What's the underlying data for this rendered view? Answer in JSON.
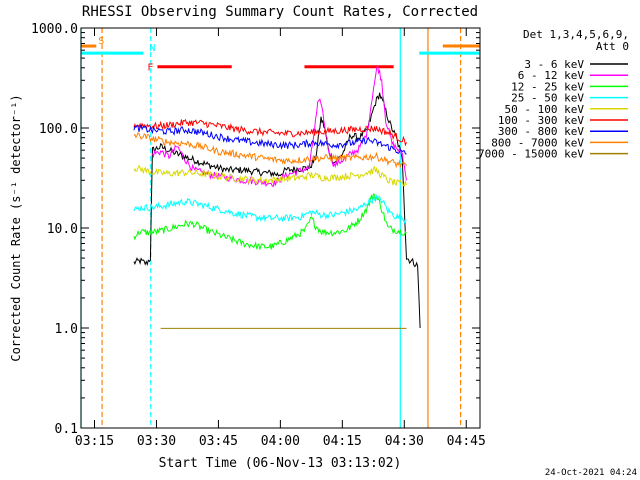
{
  "chart_data": {
    "type": "line",
    "title": "RHESSI Observing Summary Count Rates, Corrected",
    "xlabel": "Start Time (06-Nov-13 03:13:02)",
    "ylabel": "Corrected Count Rate (s⁻¹ detector⁻¹)",
    "yscale": "log",
    "ylim": [
      0.1,
      1000
    ],
    "xlim_minutes_after_0313": [
      -1.3,
      95.3
    ],
    "x_ticks": [
      {
        "label": "03:15",
        "min": 1.97
      },
      {
        "label": "03:30",
        "min": 16.97
      },
      {
        "label": "03:45",
        "min": 31.97
      },
      {
        "label": "04:00",
        "min": 46.97
      },
      {
        "label": "04:15",
        "min": 61.97
      },
      {
        "label": "04:30",
        "min": 76.97
      },
      {
        "label": "04:45",
        "min": 91.97
      }
    ],
    "y_ticks": [
      {
        "label": "0.1",
        "value": 0.1
      },
      {
        "label": "1.0",
        "value": 1
      },
      {
        "label": "10.0",
        "value": 10
      },
      {
        "label": "100.0",
        "value": 100
      },
      {
        "label": "1000.0",
        "value": 1000
      }
    ],
    "legend_header": [
      "Det 1,3,4,5,6,9,",
      "Att 0"
    ],
    "legend_position": "right",
    "series": [
      {
        "name": "3 - 6 keV",
        "color": "#000000",
        "points": [
          [
            11.5,
            4.5
          ],
          [
            13,
            4.7
          ],
          [
            14.5,
            4.4
          ],
          [
            15.5,
            5
          ],
          [
            16,
            60
          ],
          [
            18,
            65
          ],
          [
            22,
            55
          ],
          [
            26,
            48
          ],
          [
            30,
            42
          ],
          [
            34,
            38
          ],
          [
            38,
            38
          ],
          [
            42,
            36
          ],
          [
            45.5,
            35
          ],
          [
            46.5,
            34
          ],
          [
            48.5,
            38
          ],
          [
            54,
            40
          ],
          [
            55.5,
            50
          ],
          [
            56.8,
            125
          ],
          [
            57.7,
            100
          ],
          [
            58.6,
            60
          ],
          [
            60,
            45
          ],
          [
            62,
            55
          ],
          [
            64,
            85
          ],
          [
            66,
            80
          ],
          [
            68,
            95
          ],
          [
            70,
            180
          ],
          [
            71,
            220
          ],
          [
            72,
            170
          ],
          [
            73.5,
            110
          ],
          [
            75,
            80
          ],
          [
            76.5,
            50
          ],
          [
            77.5,
            5
          ],
          [
            79,
            4.6
          ],
          [
            80.2,
            4.2
          ],
          [
            80.8,
            1
          ]
        ]
      },
      {
        "name": "6 - 12 keV",
        "color": "#ff00ff",
        "points": [
          [
            16,
            55
          ],
          [
            18,
            58
          ],
          [
            20,
            52
          ],
          [
            22,
            65
          ],
          [
            24,
            48
          ],
          [
            26,
            38
          ],
          [
            30,
            34
          ],
          [
            34,
            32
          ],
          [
            38,
            30
          ],
          [
            42,
            29
          ],
          [
            45.5,
            28
          ],
          [
            48.5,
            34
          ],
          [
            54,
            40
          ],
          [
            55.2,
            95
          ],
          [
            56,
            170
          ],
          [
            56.8,
            185
          ],
          [
            57.5,
            120
          ],
          [
            58.5,
            65
          ],
          [
            60,
            42
          ],
          [
            62,
            48
          ],
          [
            64,
            55
          ],
          [
            66,
            62
          ],
          [
            68,
            90
          ],
          [
            69.5,
            250
          ],
          [
            70.5,
            420
          ],
          [
            71.5,
            300
          ],
          [
            72.5,
            120
          ],
          [
            74,
            70
          ],
          [
            76.5,
            55
          ],
          [
            77.5,
            30
          ]
        ]
      },
      {
        "name": "12 - 25 keV",
        "color": "#00ff00",
        "points": [
          [
            11.5,
            8.2
          ],
          [
            13,
            9.2
          ],
          [
            15,
            9
          ],
          [
            16,
            9
          ],
          [
            20,
            9.8
          ],
          [
            24,
            11
          ],
          [
            26,
            11
          ],
          [
            30,
            9.2
          ],
          [
            34,
            8
          ],
          [
            38,
            7
          ],
          [
            42,
            6.5
          ],
          [
            45,
            6.5
          ],
          [
            48.5,
            7.5
          ],
          [
            51,
            8.5
          ],
          [
            53,
            9.5
          ],
          [
            54.5,
            12.5
          ],
          [
            55.5,
            10.5
          ],
          [
            57,
            9.2
          ],
          [
            60,
            9
          ],
          [
            63,
            9.5
          ],
          [
            66,
            12
          ],
          [
            68,
            16
          ],
          [
            69.5,
            22
          ],
          [
            71,
            18
          ],
          [
            73,
            10
          ],
          [
            75,
            9.5
          ],
          [
            77.5,
            9
          ]
        ]
      },
      {
        "name": "25 - 50 keV",
        "color": "#00ffff",
        "points": [
          [
            11.5,
            15
          ],
          [
            13,
            16
          ],
          [
            16,
            16
          ],
          [
            20,
            17
          ],
          [
            24,
            18.5
          ],
          [
            28,
            17
          ],
          [
            32,
            15.5
          ],
          [
            36,
            14
          ],
          [
            40,
            13
          ],
          [
            44,
            12.5
          ],
          [
            48.5,
            12.5
          ],
          [
            52,
            13
          ],
          [
            54.5,
            14.5
          ],
          [
            57,
            13.5
          ],
          [
            60,
            13.5
          ],
          [
            63,
            14.5
          ],
          [
            66,
            15.5
          ],
          [
            68,
            18
          ],
          [
            70,
            20
          ],
          [
            71.5,
            19
          ],
          [
            73,
            15
          ],
          [
            75,
            13
          ],
          [
            77.5,
            12
          ]
        ]
      },
      {
        "name": "50 - 100 keV",
        "color": "#d8d800",
        "points": [
          [
            11.5,
            40
          ],
          [
            14,
            38
          ],
          [
            16,
            36
          ],
          [
            20,
            35
          ],
          [
            24,
            36
          ],
          [
            28,
            35
          ],
          [
            32,
            33
          ],
          [
            36,
            31.5
          ],
          [
            40,
            30.5
          ],
          [
            44,
            30
          ],
          [
            48.5,
            31
          ],
          [
            52,
            32
          ],
          [
            54.5,
            34
          ],
          [
            57,
            32
          ],
          [
            60,
            32
          ],
          [
            63,
            33
          ],
          [
            66,
            34
          ],
          [
            68,
            36
          ],
          [
            70,
            38
          ],
          [
            73,
            30
          ],
          [
            75,
            28
          ],
          [
            77.5,
            27
          ]
        ]
      },
      {
        "name": "100 - 300 keV",
        "color": "#ff0000",
        "points": [
          [
            11.5,
            108
          ],
          [
            14,
            106
          ],
          [
            17,
            104
          ],
          [
            20,
            107
          ],
          [
            24,
            114
          ],
          [
            28,
            112
          ],
          [
            32,
            105
          ],
          [
            36,
            98
          ],
          [
            40,
            93
          ],
          [
            44,
            90
          ],
          [
            48.5,
            88
          ],
          [
            52,
            89
          ],
          [
            55,
            91
          ],
          [
            58,
            92
          ],
          [
            61,
            94
          ],
          [
            64,
            96
          ],
          [
            67,
            98
          ],
          [
            70,
            99
          ],
          [
            73,
            90
          ],
          [
            75,
            82
          ],
          [
            77.5,
            72
          ]
        ]
      },
      {
        "name": "300 - 800 keV",
        "color": "#0000ff",
        "points": [
          [
            11.5,
            100
          ],
          [
            14,
            98
          ],
          [
            16,
            95
          ],
          [
            20,
            92
          ],
          [
            24,
            96
          ],
          [
            28,
            90
          ],
          [
            32,
            82
          ],
          [
            36,
            76
          ],
          [
            40,
            72
          ],
          [
            44,
            69
          ],
          [
            48.5,
            67
          ],
          [
            52,
            68
          ],
          [
            55,
            72
          ],
          [
            57,
            70
          ],
          [
            60,
            68
          ],
          [
            63,
            70
          ],
          [
            66,
            72
          ],
          [
            68,
            76
          ],
          [
            70,
            72
          ],
          [
            73,
            65
          ],
          [
            75,
            60
          ],
          [
            77.5,
            55
          ]
        ]
      },
      {
        "name": "800 - 7000 keV",
        "color": "#ff8000",
        "points": [
          [
            11.5,
            85
          ],
          [
            14,
            82
          ],
          [
            16,
            78
          ],
          [
            20,
            72
          ],
          [
            24,
            70
          ],
          [
            28,
            65
          ],
          [
            32,
            58
          ],
          [
            36,
            55
          ],
          [
            40,
            52
          ],
          [
            44,
            49
          ],
          [
            48.5,
            47
          ],
          [
            52,
            48
          ],
          [
            55,
            50
          ],
          [
            58,
            50
          ],
          [
            61,
            50
          ],
          [
            64,
            50
          ],
          [
            67,
            51
          ],
          [
            70,
            52
          ],
          [
            73,
            47
          ],
          [
            75,
            44
          ],
          [
            77.5,
            42
          ]
        ]
      },
      {
        "name": "7000 - 15000 keV",
        "color": "#a08000",
        "points": [
          [
            18,
            0.99
          ],
          [
            22,
            0.99
          ],
          [
            26,
            0.99
          ],
          [
            30,
            0.99
          ],
          [
            34,
            0.99
          ],
          [
            59,
            0.99
          ],
          [
            62,
            0.99
          ],
          [
            66,
            0.99
          ],
          [
            70,
            0.99
          ],
          [
            74,
            0.99
          ],
          [
            77.5,
            0.99
          ]
        ]
      }
    ],
    "flags": [
      {
        "label": "S",
        "label_color": "#ff8000",
        "color": "#ff8000",
        "y": 660,
        "x_start": -1.3,
        "x_end": 2.4
      },
      {
        "label": "",
        "label_color": "#ff8000",
        "color": "#ff8000",
        "y": 660,
        "x_start": 86.3,
        "x_end": 95.3
      },
      {
        "label": "N",
        "label_color": "#00ffff",
        "color": "#00ffff",
        "y": 560,
        "x_start": -1.3,
        "x_end": 13.8
      },
      {
        "label": "",
        "label_color": "#00ffff",
        "color": "#00ffff",
        "y": 560,
        "x_start": 80.6,
        "x_end": 95.3
      },
      {
        "label": "F",
        "label_color": "#ff0000",
        "color": "#ff0000",
        "y": 410,
        "x_start": 17.2,
        "x_end": 35.2
      },
      {
        "label": "",
        "label_color": "#ff0000",
        "color": "#ff0000",
        "y": 410,
        "x_start": 52.8,
        "x_end": 74.4
      }
    ],
    "vertical_lines": [
      {
        "min": -1.3,
        "color": "#00ffff",
        "dashed": false
      },
      {
        "min": 3.8,
        "color": "#ff8000",
        "dashed": true
      },
      {
        "min": 15.6,
        "color": "#00ffff",
        "dashed": true
      },
      {
        "min": 76.0,
        "color": "#00ffff",
        "dashed": false
      },
      {
        "min": 82.7,
        "color": "#ff8000",
        "dashed": false
      },
      {
        "min": 90.6,
        "color": "#ff8000",
        "dashed": true
      }
    ],
    "footer_date": "24-Oct-2021 04:24"
  }
}
